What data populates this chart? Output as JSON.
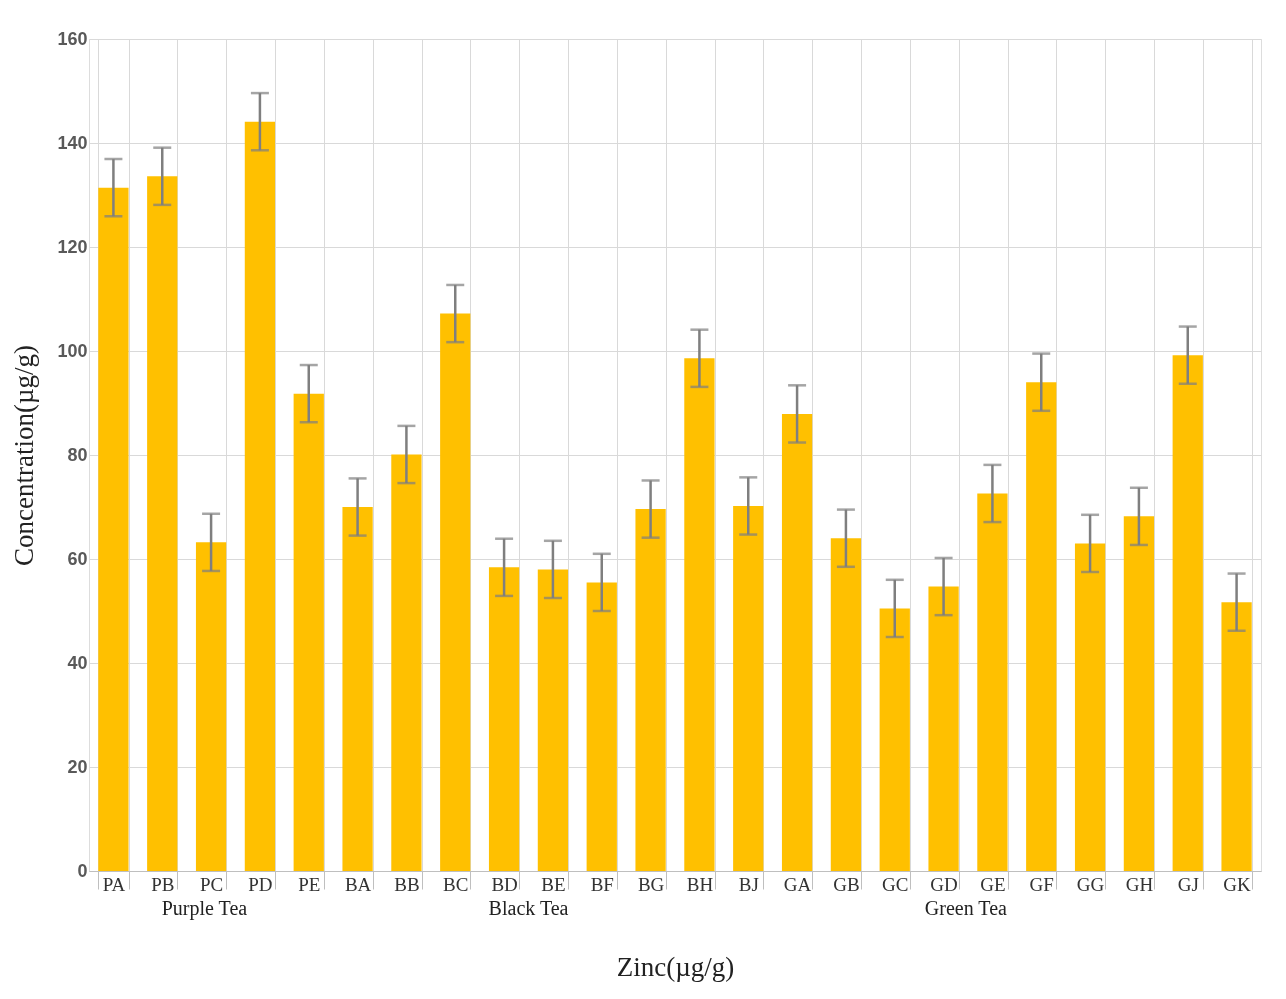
{
  "chart_data": {
    "type": "bar",
    "xlabel": "Zinc(µg/g)",
    "ylabel": "Concentration(µg/g)",
    "categories": [
      "PA",
      "PB",
      "PC",
      "PD",
      "PE",
      "BA",
      "BB",
      "BC",
      "BD",
      "BE",
      "BF",
      "BG",
      "BH",
      "BJ",
      "GA",
      "GB",
      "GC",
      "GD",
      "GE",
      "GF",
      "GG",
      "GH",
      "GJ",
      "GK"
    ],
    "values": [
      131.4,
      133.6,
      63.2,
      144.1,
      91.8,
      70,
      80.1,
      107.2,
      58.4,
      58,
      55.5,
      69.6,
      98.6,
      70.2,
      87.9,
      64,
      50.5,
      54.7,
      72.6,
      94,
      63,
      68.2,
      99.2,
      51.7
    ],
    "errors": [
      5.5,
      5.5,
      5.5,
      5.5,
      5.5,
      5.5,
      5.5,
      5.5,
      5.5,
      5.5,
      5.5,
      5.5,
      5.5,
      5.5,
      5.5,
      5.5,
      5.5,
      5.5,
      5.5,
      5.5,
      5.5,
      5.5,
      5.5,
      5.5
    ],
    "color": "#ffc000",
    "ylim": [
      0,
      160
    ],
    "yticks": [
      0,
      20,
      40,
      60,
      80,
      100,
      120,
      140,
      160
    ],
    "grid": true,
    "annotations": [
      "Purple Tea",
      "Black Tea",
      "Green Tea"
    ]
  }
}
